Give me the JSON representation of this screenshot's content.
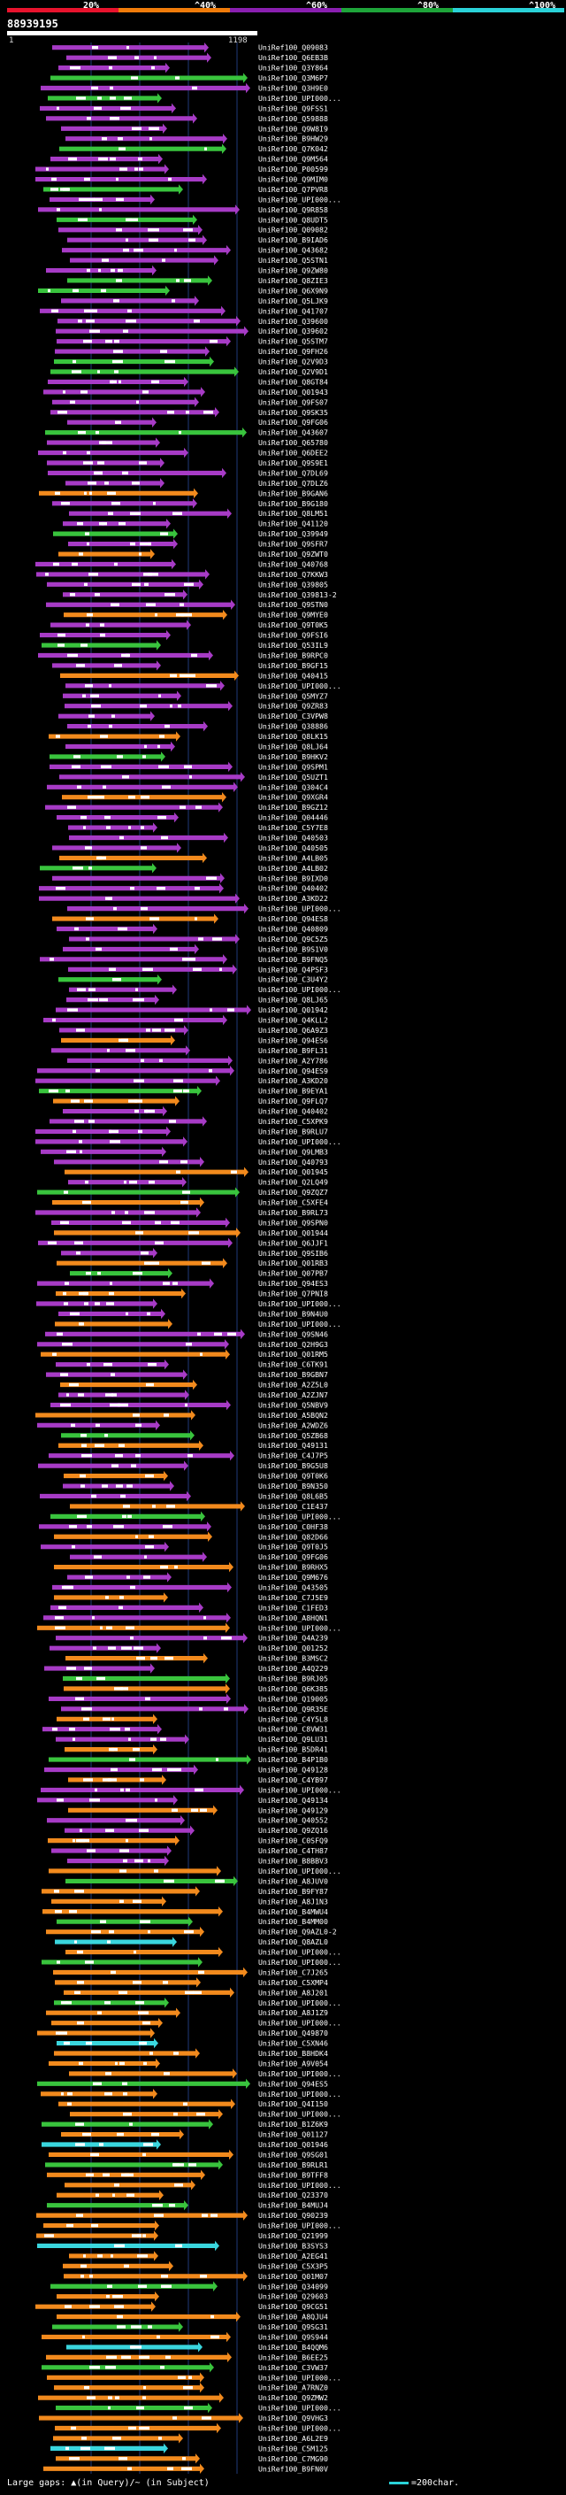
{
  "header": {
    "percent_labels": [
      "20%",
      "^40%",
      "^60%",
      "^80%",
      "^100%"
    ],
    "scale_colors": [
      "#e8132d",
      "#f07b0a",
      "#8a1fb0",
      "#1ea53a",
      "#2ad2d8"
    ],
    "query_title": "88939195",
    "range_start": "1",
    "range_end": "1198"
  },
  "legend": {
    "color_keys": [
      "green",
      "orange",
      "purple",
      "cyan",
      "pink",
      "white"
    ],
    "colors": {
      "green": "#39c43d",
      "orange": "#f28a1d",
      "purple": "#a73bc6",
      "cyan": "#3ad6de",
      "pink": "#f39ad8",
      "white": "#ffffff"
    }
  },
  "footer": {
    "gaps_text": "Large gaps: ▲(in Query)/~ (in Subject)",
    "length_text": "=200char."
  },
  "hits": [
    "UniRef100_Q09083",
    "UniRef100_Q6EB3B",
    "UniRef100_Q3Y864",
    "UniRef100_Q3M6P7",
    "UniRef100_Q3H9E0",
    "UniRef100_UPI000...",
    "UniRef100_Q9FSS1",
    "UniRef100_Q59888",
    "UniRef100_Q9W8I9",
    "UniRef100_B9HW29",
    "UniRef100_Q7K042",
    "UniRef100_Q9M564",
    "UniRef100_P00599",
    "UniRef100_Q9MIM0",
    "UniRef100_Q7PVR8",
    "UniRef100_UPI000...",
    "UniRef100_Q9R858",
    "UniRef100_Q8UDT5",
    "UniRef100_Q09082",
    "UniRef100_B9IAD6",
    "UniRef100_Q43682",
    "UniRef100_Q5STN1",
    "UniRef100_Q9ZW80",
    "UniRef100_Q8ZIE3",
    "UniRef100_Q6X9N9",
    "UniRef100_Q5LJK9",
    "UniRef100_Q41707",
    "UniRef100_Q39600",
    "UniRef100_Q39602",
    "UniRef100_Q5STM7",
    "UniRef100_Q9FH26",
    "UniRef100_Q2V9D3",
    "UniRef100_Q2V9D1",
    "UniRef100_Q8GT84",
    "UniRef100_Q01943",
    "UniRef100_Q9FS07",
    "UniRef100_Q9SK35",
    "UniRef100_Q9FG06",
    "UniRef100_Q43607",
    "UniRef100_Q65780",
    "UniRef100_Q6DEE2",
    "UniRef100_Q9S9E1",
    "UniRef100_Q7DL69",
    "UniRef100_Q7DLZ6",
    "UniRef100_B9GAN6",
    "UniRef100_B9G180",
    "UniRef100_Q8LM51",
    "UniRef100_Q41120",
    "UniRef100_Q39949",
    "UniRef100_Q9SFR7",
    "UniRef100_Q9ZWT0",
    "UniRef100_Q40768",
    "UniRef100_Q7KKW3",
    "UniRef100_Q39805",
    "UniRef100_Q39813-2",
    "UniRef100_Q9STN0",
    "UniRef100_Q9MYE0",
    "UniRef100_Q9T0K5",
    "UniRef100_Q9FSI6",
    "UniRef100_Q53IL9",
    "UniRef100_B9RPC0",
    "UniRef100_B9GF15",
    "UniRef100_Q40415",
    "UniRef100_UPI000...",
    "UniRef100_Q5MYZ7",
    "UniRef100_Q9ZR83",
    "UniRef100_C3VPW8",
    "UniRef100_Q38886",
    "UniRef100_Q8LK15",
    "UniRef100_Q8LJ64",
    "UniRef100_B9HKV2",
    "UniRef100_Q9SPM1",
    "UniRef100_Q5UZT1",
    "UniRef100_Q304C4",
    "UniRef100_Q9XGR4",
    "UniRef100_B9GZ12",
    "UniRef100_Q04446",
    "UniRef100_C5Y7E8",
    "UniRef100_Q40503",
    "UniRef100_Q40505",
    "UniRef100_A4LB05",
    "UniRef100_A4LB02",
    "UniRef100_B9IXD0",
    "UniRef100_Q40402",
    "UniRef100_A3KD22",
    "UniRef100_UPI000...",
    "UniRef100_Q94ES8",
    "UniRef100_Q40809",
    "UniRef100_Q9C5Z5",
    "UniRef100_B9S1V0",
    "UniRef100_B9FNQ5",
    "UniRef100_Q4PSF3",
    "UniRef100_C3U4Y2",
    "UniRef100_UPI000...",
    "UniRef100_Q8LJ65",
    "UniRef100_Q01942",
    "UniRef100_Q4KLL2",
    "UniRef100_Q6A9Z3",
    "UniRef100_Q94ES6",
    "UniRef100_B9FL31",
    "UniRef100_A2Y786",
    "UniRef100_Q94ES9",
    "UniRef100_A3KD20",
    "UniRef100_B9EYA1",
    "UniRef100_Q9FLQ7",
    "UniRef100_Q40402",
    "UniRef100_C5XPK9",
    "UniRef100_B9RLU7",
    "UniRef100_UPI000...",
    "UniRef100_Q9LMB3",
    "UniRef100_Q40793",
    "UniRef100_Q01945",
    "UniRef100_Q2LQ49",
    "UniRef100_Q9ZQZ7",
    "UniRef100_C5XFE4",
    "UniRef100_B9RL73",
    "UniRef100_Q9SPN0",
    "UniRef100_Q01944",
    "UniRef100_Q6JJF1",
    "UniRef100_Q9SIB6",
    "UniRef100_Q01RB3",
    "UniRef100_Q07PB7",
    "UniRef100_Q94ES3",
    "UniRef100_Q7PNI8",
    "UniRef100_UPI000...",
    "UniRef100_B9N4U0",
    "UniRef100_UPI000...",
    "UniRef100_Q9SN46",
    "UniRef100_Q2H9G3",
    "UniRef100_Q01RM5",
    "UniRef100_C6TK91",
    "UniRef100_B9GBN7",
    "UniRef100_A2Z5L0",
    "UniRef100_A2ZJN7",
    "UniRef100_Q5NBV9",
    "UniRef100_A5BQN2",
    "UniRef100_A2WDZ6",
    "UniRef100_Q5ZB68",
    "UniRef100_Q49131",
    "UniRef100_C4J7P5",
    "UniRef100_B9G5U8",
    "UniRef100_Q9T0K6",
    "UniRef100_B9N350",
    "UniRef100_Q8L6B5",
    "UniRef100_C1E437",
    "UniRef100_UPI000...",
    "UniRef100_C0HF38",
    "UniRef100_Q82D66",
    "UniRef100_Q9T0J5",
    "UniRef100_Q9FG06",
    "UniRef100_B9RHX5",
    "UniRef100_Q9M676",
    "UniRef100_Q43505",
    "UniRef100_C7J5E9",
    "UniRef100_C1FED3",
    "UniRef100_A8HQN1",
    "UniRef100_UPI000...",
    "UniRef100_Q4A239",
    "UniRef100_Q01252",
    "UniRef100_B3MSC2",
    "UniRef100_A4Q229",
    "UniRef100_B9RJ05",
    "UniRef100_Q6K385",
    "UniRef100_Q19005",
    "UniRef100_Q9R35E",
    "UniRef100_C4Y5L8",
    "UniRef100_C8VW31",
    "UniRef100_Q9LU31",
    "UniRef100_B5DR41",
    "UniRef100_B4P1B0",
    "UniRef100_Q49128",
    "UniRef100_C4YB97",
    "UniRef100_UPI000...",
    "UniRef100_Q49134",
    "UniRef100_Q49129",
    "UniRef100_Q40552",
    "UniRef100_Q9ZQ16",
    "UniRef100_C0SFQ9",
    "UniRef100_C4TH87",
    "UniRef100_B8BBV3",
    "UniRef100_UPI000...",
    "UniRef100_A8JUV0",
    "UniRef100_B9FY87",
    "UniRef100_A8J1N3",
    "UniRef100_B4MWU4",
    "UniRef100_B4MM00",
    "UniRef100_Q9AZL0-2",
    "UniRef100_Q8AZL0",
    "UniRef100_UPI000...",
    "UniRef100_UPI000...",
    "UniRef100_C7J265",
    "UniRef100_C5XMP4",
    "UniRef100_A8J201",
    "UniRef100_UPI000...",
    "UniRef100_A8J1Z9",
    "UniRef100_UPI000...",
    "UniRef100_Q49870",
    "UniRef100_C5XN46",
    "UniRef100_B8HDK4",
    "UniRef100_A9V054",
    "UniRef100_UPI000...",
    "UniRef100_Q94ES5",
    "UniRef100_UPI000...",
    "UniRef100_Q4I150",
    "UniRef100_UPI000...",
    "UniRef100_B1Z6K9",
    "UniRef100_Q01127",
    "UniRef100_Q01946",
    "UniRef100_Q9SG01",
    "UniRef100_B9RLR1",
    "UniRef100_B9TFF8",
    "UniRef100_UPI000...",
    "UniRef100_Q23370",
    "UniRef100_B4MUJ4",
    "UniRef100_Q90239",
    "UniRef100_UPI000...",
    "UniRef100_Q21999",
    "UniRef100_B3SYS3",
    "UniRef100_A2EG41",
    "UniRef100_C5X3P5",
    "UniRef100_Q01M07",
    "UniRef100_Q34099",
    "UniRef100_Q29603",
    "UniRef100_Q9CG51",
    "UniRef100_A8QJU4",
    "UniRef100_Q9SG31",
    "UniRef100_Q9S944",
    "UniRef100_B4QQM6",
    "UniRef100_B6EE25",
    "UniRef100_C3VW37",
    "UniRef100_UPI000...",
    "UniRef100_A7RNZ0",
    "UniRef100_Q9ZMW2",
    "UniRef100_UPI000...",
    "UniRef100_Q9VHG3",
    "UniRef100_UPI000...",
    "UniRef100_A6L2E9",
    "UniRef100_C5M125",
    "UniRef100_C7MG90",
    "UniRef100_B9FN0V"
  ]
}
